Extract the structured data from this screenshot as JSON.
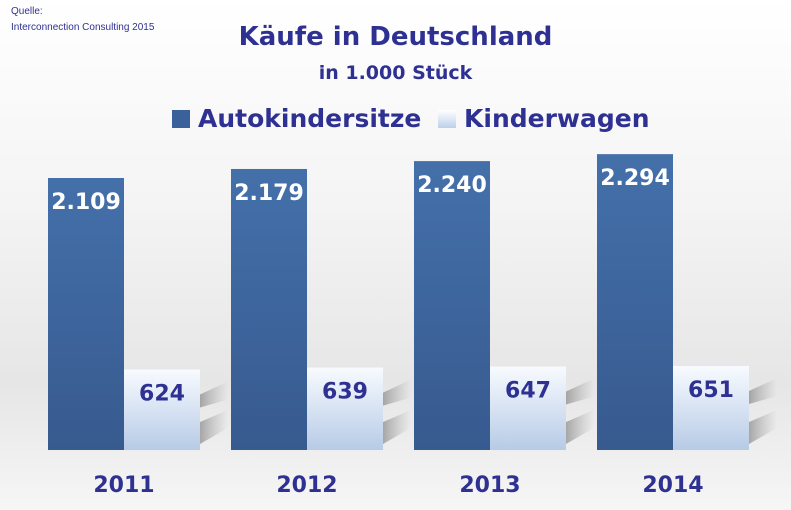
{
  "source": {
    "label": "Quelle:",
    "text": "Interconnection Consulting 2015"
  },
  "chart_data": {
    "type": "bar",
    "title": "Käufe in Deutschland",
    "subtitle": "in 1.000 Stück",
    "categories": [
      "2011",
      "2012",
      "2013",
      "2014"
    ],
    "series": [
      {
        "name": "Autokindersitze",
        "values": [
          2109,
          2179,
          2240,
          2294
        ],
        "labels": [
          "2.109",
          "2.179",
          "2.240",
          "2.294"
        ],
        "color": "#3a6199"
      },
      {
        "name": "Kinderwagen",
        "values": [
          624,
          639,
          647,
          651
        ],
        "labels": [
          "624",
          "639",
          "647",
          "651"
        ],
        "color": "#dfe8f4"
      }
    ],
    "ylim": [
      0,
      2300
    ],
    "grid": false,
    "legend": "top"
  }
}
